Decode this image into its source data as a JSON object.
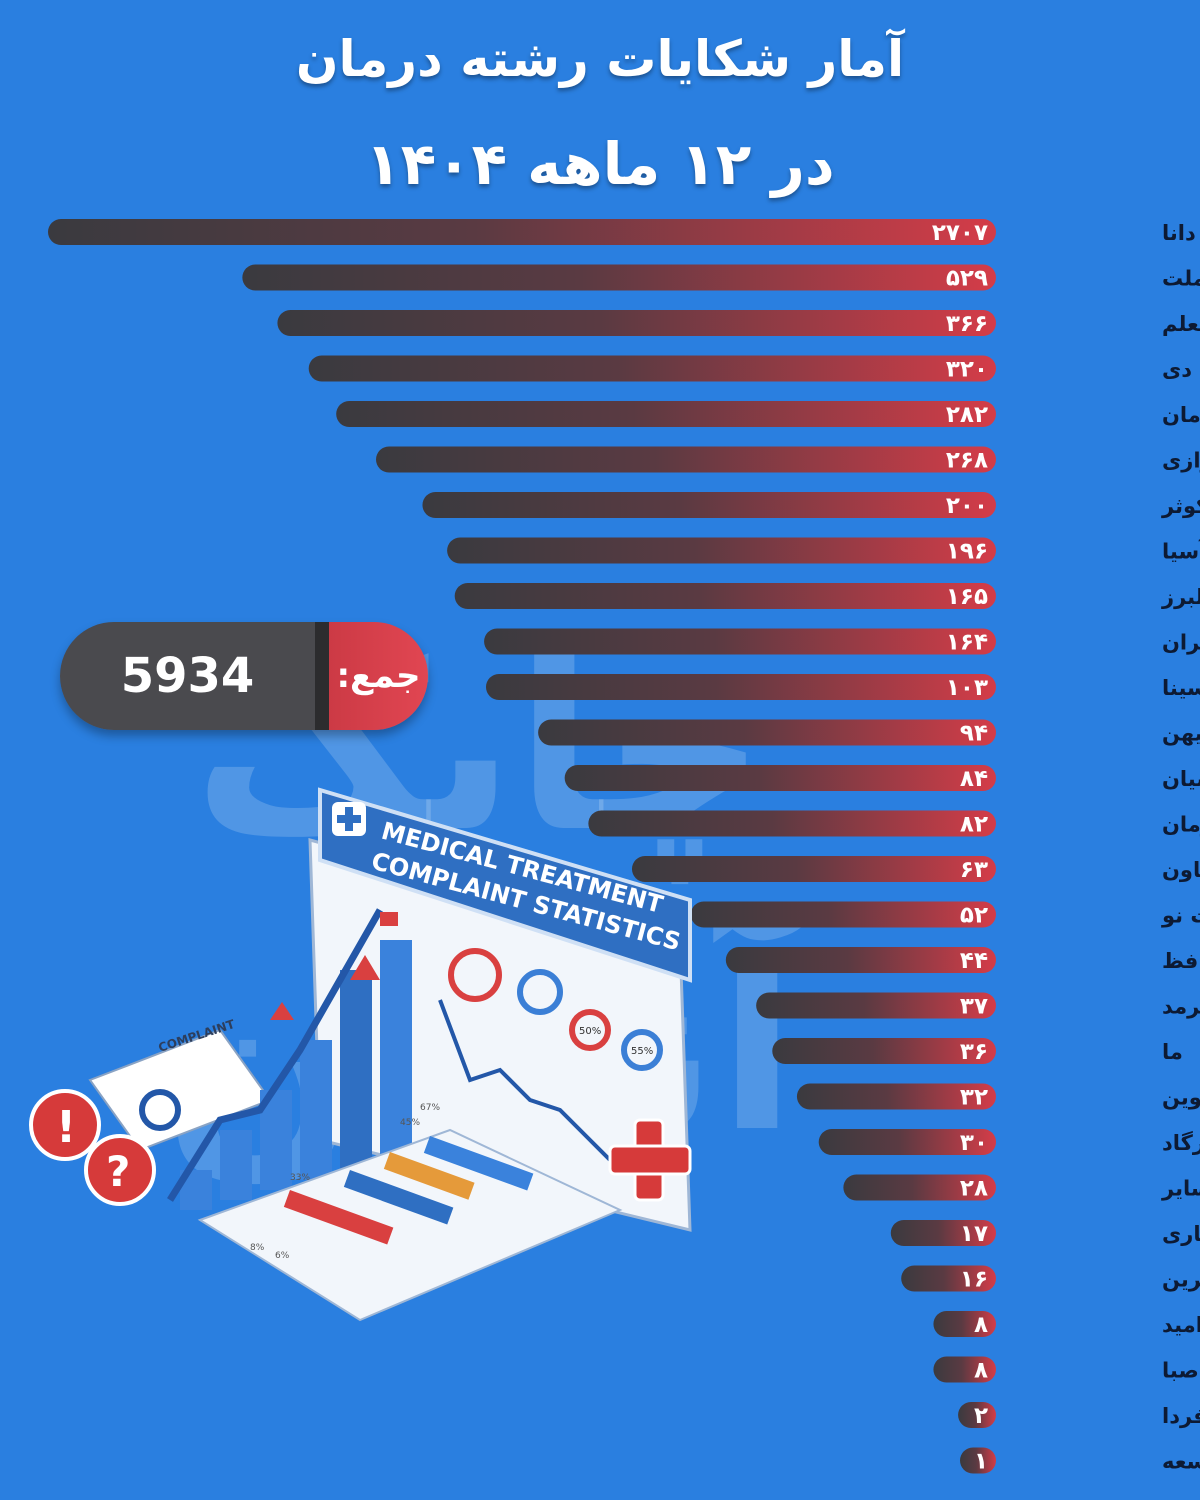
{
  "header": {
    "title": "آمار شکایات رشته درمان",
    "subtitle": "در ۱۲ ماهه ۱۴۰۴"
  },
  "watermark": "چابک آنلاین",
  "total": {
    "label": "جمع:",
    "value": "5934"
  },
  "colors": {
    "background": "#2a7fe0",
    "bar_dark": "#3f3f44",
    "bar_red": "#d43c48"
  },
  "illustration": {
    "heading_line1": "MEDICAL TREATMENT",
    "heading_line2": "COMPLAINT STATISTICS",
    "doc_label": "COMPLAINT",
    "gauge_1": "50%",
    "gauge_2": "55%",
    "mini_values": [
      "8%",
      "6%",
      "33%",
      "45%",
      "67%"
    ]
  },
  "chart_data": {
    "type": "bar",
    "orientation": "horizontal",
    "title": "آمار شکایات رشته درمان",
    "subtitle": "در ۱۲ ماهه ۱۴۰۴",
    "categories": [
      "دانا",
      "ملت",
      "معلم",
      "دی",
      "سامان",
      "رازی",
      "کوثر",
      "آسیا",
      "البرز",
      "ایران",
      "سینا",
      "میهن",
      "پارسیان",
      "آرمان",
      "تعاون",
      "تجارت نو",
      "حافظ",
      "سرمد",
      "ما",
      "نوین",
      "پاسارگاد",
      "سایر",
      "آسماری",
      "کارآفرین",
      "امید",
      "حکمت صبا",
      "هوشمند فردا",
      "توسعه"
    ],
    "values": [
      2707,
      529,
      366,
      320,
      282,
      268,
      200,
      196,
      165,
      164,
      103,
      94,
      84,
      82,
      63,
      52,
      44,
      37,
      36,
      32,
      30,
      28,
      17,
      16,
      8,
      8,
      2,
      1
    ],
    "value_labels": [
      "۲۷۰۷",
      "۵۲۹",
      "۳۶۶",
      "۳۲۰",
      "۲۸۲",
      "۲۶۸",
      "۲۰۰",
      "۱۹۶",
      "۱۶۵",
      "۱۶۴",
      "۱۰۳",
      "۹۴",
      "۸۴",
      "۸۲",
      "۶۳",
      "۵۲",
      "۴۴",
      "۳۷",
      "۳۶",
      "۳۲",
      "۳۰",
      "۲۸",
      "۱۷",
      "۱۶",
      "۸",
      "۸",
      "۲",
      "۱"
    ],
    "axis_scale": "non-linear",
    "bar_lengths_relative": [
      1.0,
      0.795,
      0.758,
      0.725,
      0.696,
      0.654,
      0.605,
      0.579,
      0.571,
      0.54,
      0.538,
      0.483,
      0.455,
      0.43,
      0.384,
      0.322,
      0.285,
      0.253,
      0.236,
      0.21,
      0.187,
      0.161,
      0.111,
      0.1,
      0.066,
      0.066,
      0.04,
      0.033
    ],
    "grid": false,
    "legend": "none"
  }
}
